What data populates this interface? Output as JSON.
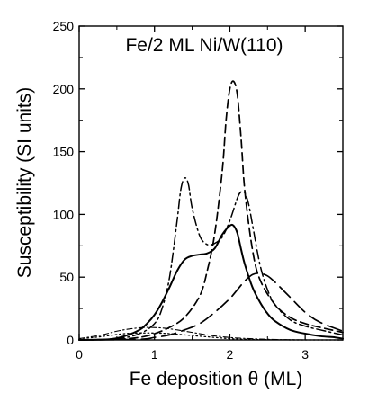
{
  "chart_data": {
    "type": "line",
    "title": "Fe/2 ML Ni/W(110)",
    "xlabel": "Fe deposition θ (ML)",
    "ylabel": "Susceptibility (SI units)",
    "xlim": [
      0,
      3.5
    ],
    "ylim": [
      0,
      250
    ],
    "xticks": [
      0,
      1,
      2,
      3
    ],
    "yticks": [
      0,
      50,
      100,
      150,
      200,
      250
    ],
    "grid": false,
    "legend": "none",
    "series": [
      {
        "style": "solid",
        "x": [
          0,
          0.4,
          0.6,
          0.8,
          0.9,
          1.0,
          1.1,
          1.2,
          1.3,
          1.4,
          1.5,
          1.6,
          1.7,
          1.8,
          1.9,
          2.0,
          2.05,
          2.1,
          2.15,
          2.2,
          2.3,
          2.4,
          2.5,
          2.6,
          2.8,
          3.0,
          3.2,
          3.4,
          3.5
        ],
        "y": [
          0,
          0.5,
          3,
          8,
          13,
          20,
          30,
          42,
          55,
          64,
          67,
          68,
          69,
          73,
          84,
          91,
          91,
          85,
          72,
          60,
          42,
          30,
          21,
          15,
          8,
          5,
          3,
          2,
          1
        ]
      },
      {
        "style": "dashed",
        "x": [
          0,
          0.5,
          0.8,
          1.0,
          1.2,
          1.4,
          1.6,
          1.7,
          1.8,
          1.9,
          1.95,
          2.0,
          2.05,
          2.1,
          2.15,
          2.2,
          2.3,
          2.4,
          2.6,
          2.8,
          3.0,
          3.2,
          3.5
        ],
        "y": [
          0,
          0.5,
          2,
          5,
          10,
          18,
          35,
          55,
          85,
          135,
          175,
          200,
          206,
          195,
          160,
          118,
          72,
          48,
          28,
          18,
          13,
          10,
          6
        ]
      },
      {
        "style": "long-dash",
        "x": [
          0,
          0.8,
          1.0,
          1.2,
          1.4,
          1.6,
          1.8,
          2.0,
          2.1,
          2.2,
          2.3,
          2.4,
          2.5,
          2.6,
          2.8,
          3.0,
          3.2,
          3.5
        ],
        "y": [
          0,
          0.5,
          2,
          4,
          8,
          13,
          22,
          33,
          40,
          47,
          52,
          53,
          51,
          46,
          34,
          22,
          14,
          7
        ]
      },
      {
        "style": "dash-dot",
        "x": [
          0,
          0.5,
          0.8,
          1.0,
          1.1,
          1.2,
          1.3,
          1.35,
          1.4,
          1.45,
          1.5,
          1.6,
          1.7,
          1.8,
          1.9,
          2.0,
          2.1,
          2.15,
          2.2,
          2.25,
          2.3,
          2.4,
          2.5,
          2.6,
          2.8,
          3.0,
          3.2,
          3.5
        ],
        "y": [
          0,
          1,
          5,
          13,
          25,
          50,
          95,
          120,
          129,
          124,
          105,
          83,
          76,
          77,
          82,
          95,
          113,
          118,
          117,
          108,
          92,
          60,
          40,
          28,
          16,
          11,
          8,
          4
        ]
      },
      {
        "style": "dotted",
        "x": [
          0,
          0.2,
          0.4,
          0.6,
          0.8,
          1.0,
          1.2,
          1.5,
          1.8,
          2.0,
          2.2,
          2.5,
          3.0,
          3.5
        ],
        "y": [
          1,
          2,
          3.5,
          5,
          5.5,
          5.5,
          5,
          3.5,
          2,
          1,
          0.5,
          0.2,
          0,
          0
        ]
      },
      {
        "style": "thin-dash-dot",
        "x": [
          0,
          0.3,
          0.5,
          0.7,
          0.9,
          1.1,
          1.3,
          1.5,
          1.7,
          1.9,
          2.1,
          2.5,
          3.0,
          3.5
        ],
        "y": [
          1,
          4,
          7,
          9,
          10,
          9.5,
          8,
          6,
          4,
          2.5,
          1.5,
          0.5,
          0,
          0
        ]
      }
    ]
  }
}
